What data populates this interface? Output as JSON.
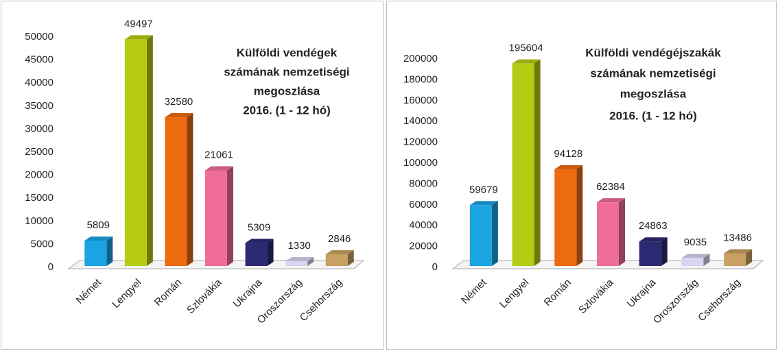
{
  "chart_data": [
    {
      "type": "bar",
      "title": [
        "Külföldi vendégek",
        "számának nemzetiségi",
        "megoszlása",
        "2016. (1 - 12 hó)"
      ],
      "categories": [
        "Német",
        "Lengyel",
        "Román",
        "Szlovákia",
        "Ukrajna",
        "Oroszország",
        "Csehország"
      ],
      "values": [
        5809,
        49497,
        32580,
        21061,
        5309,
        1330,
        2846
      ],
      "colors": [
        "#1ba3e2",
        "#b6cc12",
        "#ec6a10",
        "#ef6c9b",
        "#2c2a72",
        "#d8d4f1",
        "#c8a063"
      ],
      "ylim": [
        0,
        50000
      ],
      "yticks": [
        0,
        5000,
        10000,
        15000,
        20000,
        25000,
        30000,
        35000,
        40000,
        45000,
        50000
      ]
    },
    {
      "type": "bar",
      "title": [
        "Külföldi vendégéjszakák",
        "számának nemzetiségi",
        "megoszlása",
        "2016. (1 - 12 hó)"
      ],
      "categories": [
        "Német",
        "Lengyel",
        "Román",
        "Szlovákia",
        "Ukrajna",
        "Oroszország",
        "Csehország"
      ],
      "values": [
        59679,
        195604,
        94128,
        62384,
        24863,
        9035,
        13486
      ],
      "colors": [
        "#1ba3e2",
        "#b6cc12",
        "#ec6a10",
        "#ef6c9b",
        "#2c2a72",
        "#d8d4f1",
        "#c8a063"
      ],
      "ylim": [
        0,
        200000
      ],
      "yticks": [
        0,
        20000,
        40000,
        60000,
        80000,
        100000,
        120000,
        140000,
        160000,
        180000,
        200000
      ]
    }
  ]
}
